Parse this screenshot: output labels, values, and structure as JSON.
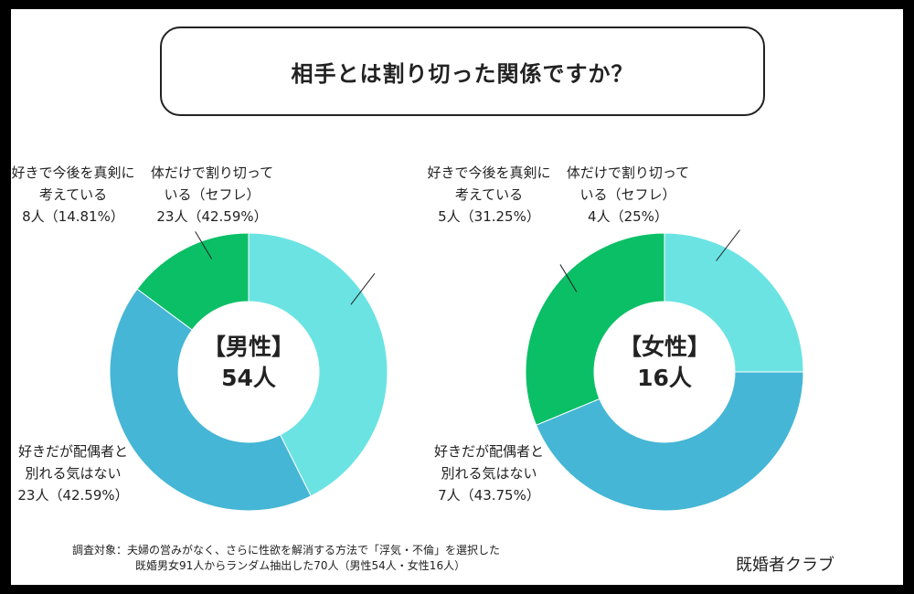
{
  "title": "相手とは割り切った関係ですか？",
  "chart_data": [
    {
      "type": "pie",
      "center_title": "【男性】",
      "center_total": "54人",
      "series": [
        {
          "name": "体だけで割り切っている（セフレ）",
          "lines": [
            "体だけで割り切って",
            "いる（セフレ）",
            "23人（42.59%）"
          ],
          "value": 23,
          "percent": 42.59,
          "color": "#6ce3e3"
        },
        {
          "name": "好きだが配偶者と別れる気はない",
          "lines": [
            "好きだが配偶者と",
            "別れる気はない",
            "23人（42.59%）"
          ],
          "value": 23,
          "percent": 42.59,
          "color": "#45b6d6"
        },
        {
          "name": "好きで今後を真剣に考えている",
          "lines": [
            "好きで今後を真剣に",
            "考えている",
            "8人（14.81%）"
          ],
          "value": 8,
          "percent": 14.81,
          "color": "#0bbf67"
        }
      ]
    },
    {
      "type": "pie",
      "center_title": "【女性】",
      "center_total": "16人",
      "series": [
        {
          "name": "体だけで割り切っている（セフレ）",
          "lines": [
            "体だけで割り切って",
            "いる（セフレ）",
            "4人（25%）"
          ],
          "value": 4,
          "percent": 25,
          "color": "#6ce3e3"
        },
        {
          "name": "好きだが配偶者と別れる気はない",
          "lines": [
            "好きだが配偶者と",
            "別れる気はない",
            "7人（43.75%）"
          ],
          "value": 7,
          "percent": 43.75,
          "color": "#45b6d6"
        },
        {
          "name": "好きで今後を真剣に考えている",
          "lines": [
            "好きで今後を真剣に",
            "考えている",
            "5人（31.25%）"
          ],
          "value": 5,
          "percent": 31.25,
          "color": "#0bbf67"
        }
      ]
    }
  ],
  "footer": {
    "line1": "調査対象：夫婦の営みがなく、さらに性欲を解消する方法で「浮気・不倫」を選択した",
    "line2": "既婚男女91人からランダム抽出した70人（男性54人・女性16人）"
  },
  "brand": "既婚者クラブ"
}
